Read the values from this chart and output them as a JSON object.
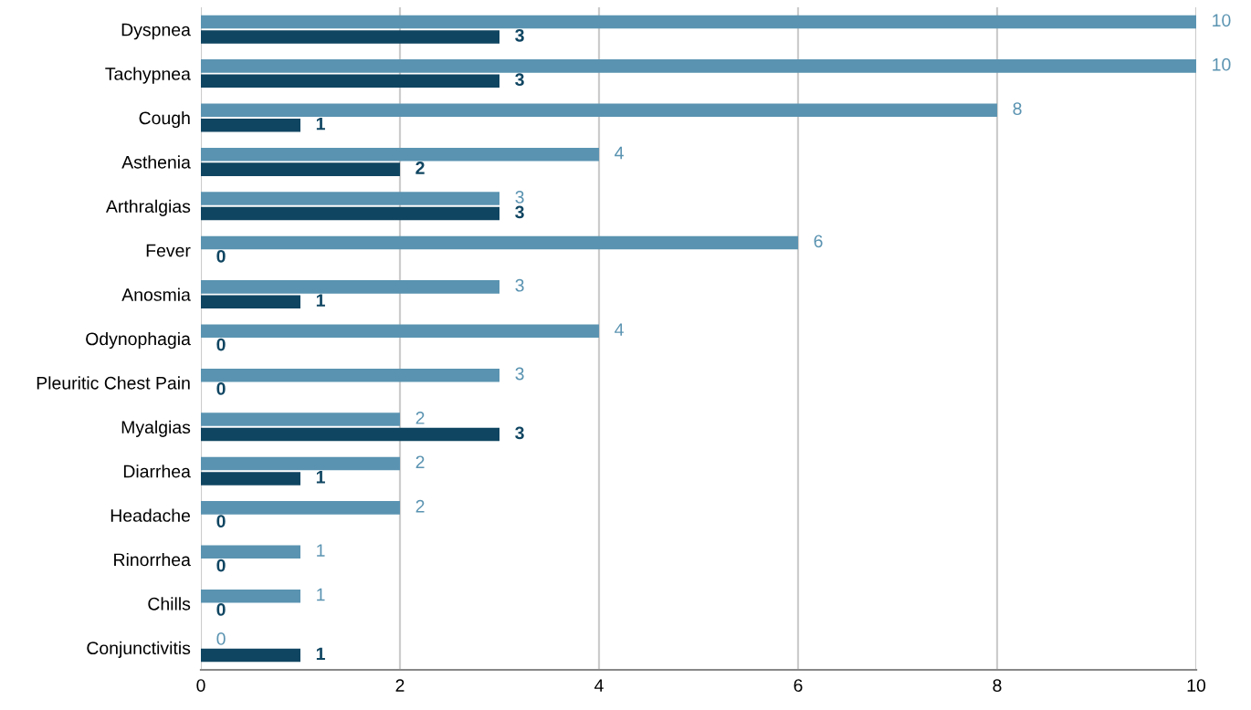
{
  "chart_data": {
    "type": "bar",
    "orientation": "horizontal",
    "categories": [
      "Dyspnea",
      "Tachypnea",
      "Cough",
      "Asthenia",
      "Arthralgias",
      "Fever",
      "Anosmia",
      "Odynophagia",
      "Pleuritic Chest Pain",
      "Myalgias",
      "Diarrhea",
      "Headache",
      "Rinorrhea",
      "Chills",
      "Conjunctivitis"
    ],
    "series": [
      {
        "color": "#5a93b1",
        "values": [
          10,
          10,
          8,
          4,
          3,
          6,
          3,
          4,
          3,
          2,
          2,
          2,
          1,
          1,
          0
        ]
      },
      {
        "color": "#0f4561",
        "values": [
          3,
          3,
          1,
          2,
          3,
          0,
          1,
          0,
          0,
          3,
          1,
          0,
          0,
          0,
          1
        ]
      }
    ],
    "xlim": [
      0,
      10
    ],
    "xticks": [
      0,
      2,
      4,
      6,
      8,
      10
    ],
    "grid": "x",
    "data_labels": true
  }
}
